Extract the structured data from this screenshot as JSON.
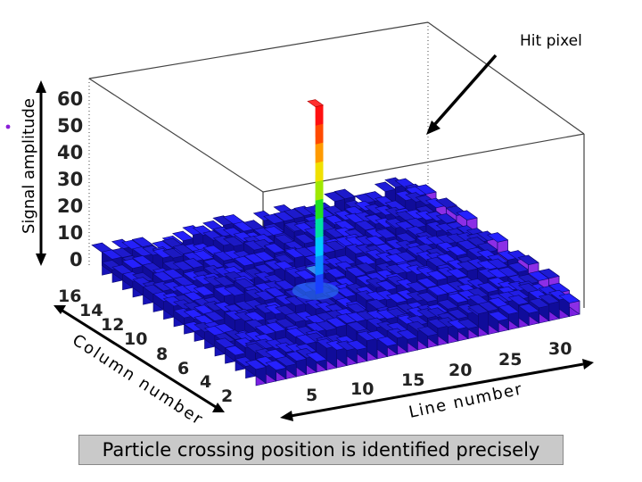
{
  "chart_data": {
    "type": "lego3d",
    "zlabel": "Signal amplitude",
    "xlabel": "Line number",
    "ylabel": "Column number",
    "z_ticks": [
      "60",
      "50",
      "40",
      "30",
      "20",
      "10",
      "0"
    ],
    "x_ticks": [
      "5",
      "10",
      "15",
      "20",
      "25",
      "30"
    ],
    "y_ticks": [
      "16",
      "14",
      "12",
      "10",
      "8",
      "6",
      "4",
      "2"
    ],
    "annotation": "Hit pixel",
    "hit": {
      "line": 15,
      "column": 9,
      "amplitude": 60
    },
    "noise_level": 5,
    "zlim": [
      0,
      60
    ]
  },
  "caption": "Particle crossing position is identified precisely",
  "colors": {
    "base_blue": "#1a18e6",
    "floor_purple": "#8a1fd8",
    "arrow": "#000000"
  }
}
